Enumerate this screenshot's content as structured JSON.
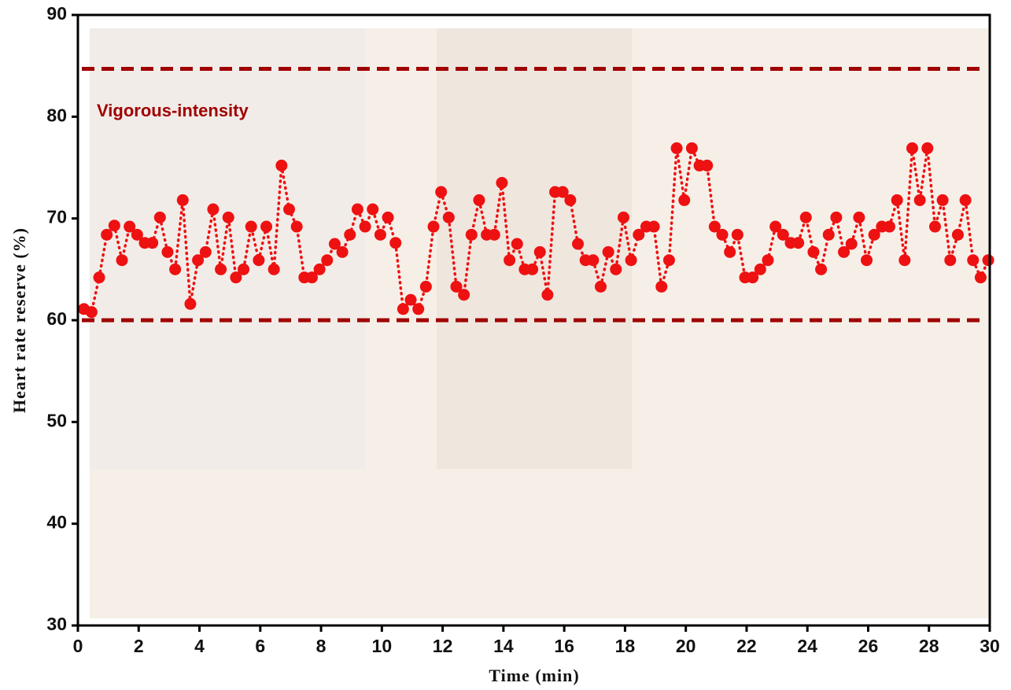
{
  "chart_data": {
    "type": "line",
    "xlabel": "Time (min)",
    "ylabel": "Heart rate reserve (%)",
    "annotation": "Vigorous-intensity",
    "xlim": [
      0,
      30
    ],
    "ylim": [
      30,
      90
    ],
    "xticks": [
      0,
      2,
      4,
      6,
      8,
      10,
      12,
      14,
      16,
      18,
      20,
      22,
      24,
      26,
      28,
      30
    ],
    "yticks": [
      30,
      40,
      50,
      60,
      70,
      80,
      90
    ],
    "reference_lines": [
      {
        "value": 84.7,
        "color": "#a00000"
      },
      {
        "value": 60,
        "color": "#a00000"
      }
    ],
    "series": [
      {
        "color": "#ee1111",
        "x": [
          0.2,
          0.45,
          0.7,
          0.95,
          1.2,
          1.45,
          1.7,
          1.95,
          2.2,
          2.45,
          2.7,
          2.95,
          3.2,
          3.45,
          3.7,
          3.95,
          4.2,
          4.45,
          4.7,
          4.95,
          5.2,
          5.45,
          5.7,
          5.95,
          6.2,
          6.45,
          6.7,
          6.95,
          7.2,
          7.45,
          7.7,
          7.95,
          8.2,
          8.45,
          8.7,
          8.95,
          9.2,
          9.45,
          9.7,
          9.95,
          10.2,
          10.45,
          10.7,
          10.95,
          11.2,
          11.45,
          11.7,
          11.95,
          12.2,
          12.45,
          12.7,
          12.95,
          13.2,
          13.45,
          13.7,
          13.95,
          14.2,
          14.45,
          14.7,
          14.95,
          15.2,
          15.45,
          15.7,
          15.95,
          16.2,
          16.45,
          16.7,
          16.95,
          17.2,
          17.45,
          17.7,
          17.95,
          18.2,
          18.45,
          18.7,
          18.95,
          19.2,
          19.45,
          19.7,
          19.95,
          20.2,
          20.45,
          20.7,
          20.95,
          21.2,
          21.45,
          21.7,
          21.95,
          22.2,
          22.45,
          22.7,
          22.95,
          23.2,
          23.45,
          23.7,
          23.95,
          24.2,
          24.45,
          24.7,
          24.95,
          25.2,
          25.45,
          25.7,
          25.95,
          26.2,
          26.45,
          26.7,
          26.95,
          27.2,
          27.45,
          27.7,
          27.95,
          28.2,
          28.45,
          28.7,
          28.95,
          29.2,
          29.45,
          29.7,
          29.95
        ],
        "values": [
          61.1,
          60.8,
          64.2,
          68.4,
          69.3,
          65.9,
          69.2,
          68.4,
          67.6,
          67.6,
          70.1,
          66.7,
          65.0,
          71.8,
          61.6,
          65.9,
          66.7,
          70.9,
          65.0,
          70.1,
          64.2,
          65.0,
          69.2,
          65.9,
          69.2,
          65.0,
          75.2,
          70.9,
          69.2,
          64.2,
          64.2,
          65.0,
          65.9,
          67.5,
          66.7,
          68.4,
          70.9,
          69.2,
          70.9,
          68.4,
          70.1,
          67.6,
          61.1,
          62.0,
          61.1,
          63.3,
          69.2,
          72.6,
          70.1,
          63.3,
          62.5,
          68.4,
          71.8,
          68.4,
          68.4,
          73.5,
          65.9,
          67.5,
          65.0,
          65.0,
          66.7,
          62.5,
          72.6,
          72.6,
          71.8,
          67.5,
          65.9,
          65.9,
          63.3,
          66.7,
          65.0,
          70.1,
          65.9,
          68.4,
          69.2,
          69.2,
          63.3,
          65.9,
          76.9,
          71.8,
          76.9,
          75.2,
          75.2,
          69.2,
          68.4,
          66.7,
          68.4,
          64.2,
          64.2,
          65.0,
          65.9,
          69.2,
          68.4,
          67.6,
          67.6,
          70.1,
          66.7,
          65.0,
          68.4,
          70.1,
          66.7,
          67.5,
          70.1,
          65.9,
          68.4,
          69.2,
          69.2,
          71.8,
          65.9,
          76.9,
          71.8,
          76.9,
          69.2,
          71.8,
          65.9,
          68.4,
          71.8,
          65.9,
          64.2,
          65.9
        ]
      }
    ]
  }
}
